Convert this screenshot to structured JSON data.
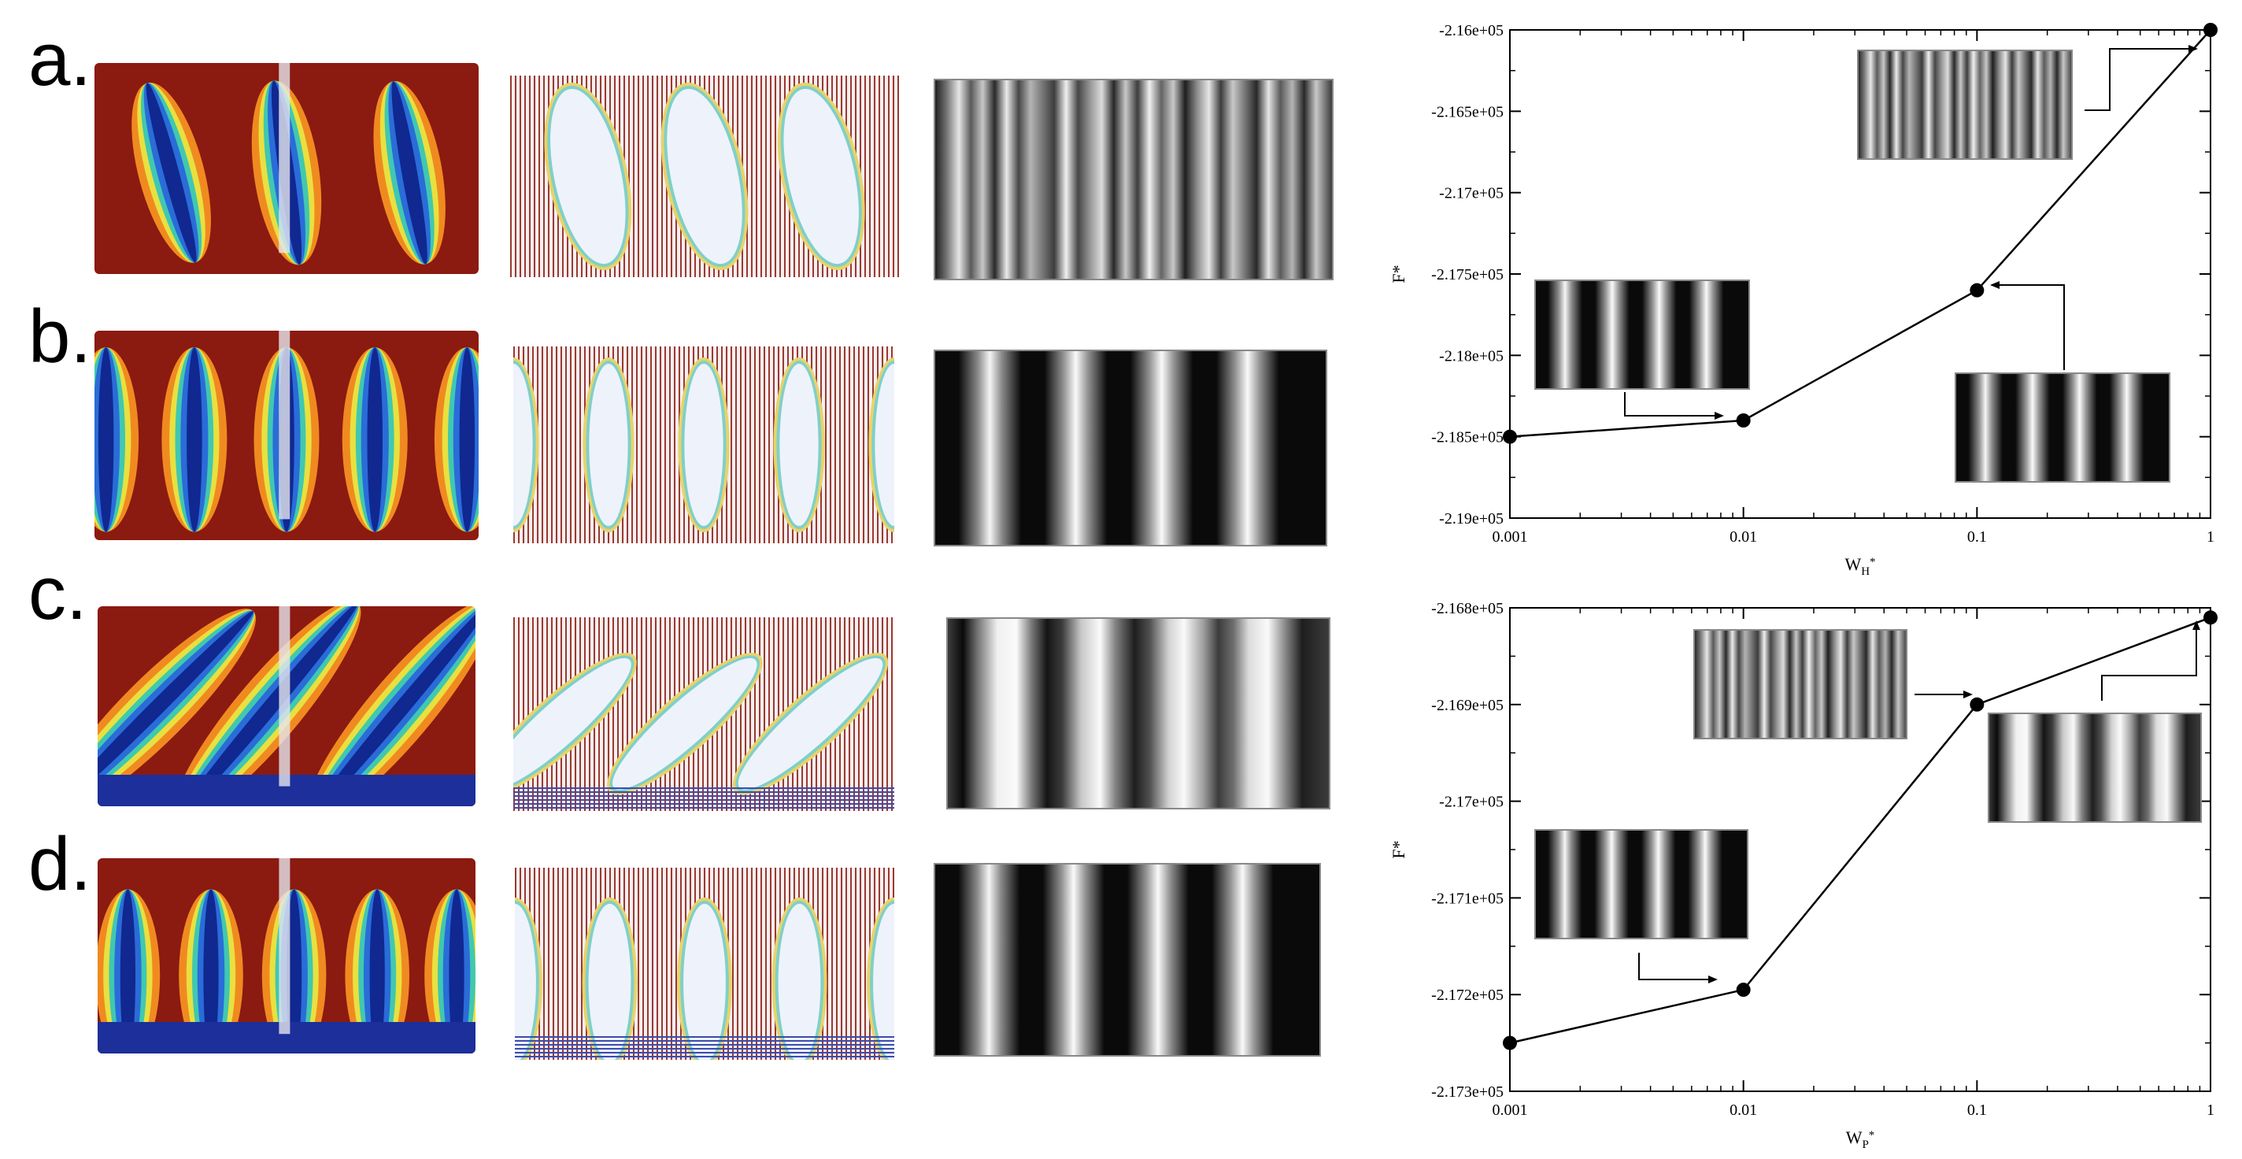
{
  "rows": [
    {
      "label": "a.",
      "sim_pattern": "tilted",
      "grid_pattern": "tilted",
      "stripe_profile": "irregular"
    },
    {
      "label": "b.",
      "sim_pattern": "vertical",
      "grid_pattern": "vertical",
      "stripe_profile": "regular"
    },
    {
      "label": "c.",
      "sim_pattern": "slanted",
      "grid_pattern": "slanted",
      "stripe_profile": "wide"
    },
    {
      "label": "d.",
      "sim_pattern": "fingers",
      "grid_pattern": "fingers",
      "stripe_profile": "regular"
    }
  ],
  "chart_data": [
    {
      "type": "line",
      "x": [
        0.001,
        0.01,
        0.1,
        1
      ],
      "y": [
        -218500,
        -218400,
        -217600,
        -216000
      ],
      "xlabel": "W",
      "xlabel_sub": "H",
      "xlabel_sup": "*",
      "ylabel": "F*",
      "xscale": "log",
      "xlim": [
        0.001,
        1
      ],
      "ylim": [
        -219000,
        -216000
      ],
      "xticks": [
        "0.001",
        "0.01",
        "0.1",
        "1"
      ],
      "yticks": [
        "-2.19e+05",
        "-2.185e+05",
        "-2.18e+05",
        "-2.175e+05",
        "-2.17e+05",
        "-2.165e+05",
        "-2.16e+05"
      ],
      "grid": false,
      "marker_color": "#000000",
      "line_color": "#000000"
    },
    {
      "type": "line",
      "x": [
        0.001,
        0.01,
        0.1,
        1
      ],
      "y": [
        -217250,
        -217195,
        -216900,
        -216810
      ],
      "xlabel": "W",
      "xlabel_sub": "P",
      "xlabel_sup": "*",
      "ylabel": "F*",
      "xscale": "log",
      "xlim": [
        0.001,
        1
      ],
      "ylim": [
        -217300,
        -216800
      ],
      "xticks": [
        "0.001",
        "0.01",
        "0.1",
        "1"
      ],
      "yticks": [
        "-2.173e+05",
        "-2.172e+05",
        "-2.171e+05",
        "-2.17e+05",
        "-2.169e+05",
        "-2.168e+05"
      ],
      "grid": false,
      "marker_color": "#000000",
      "line_color": "#000000"
    }
  ]
}
